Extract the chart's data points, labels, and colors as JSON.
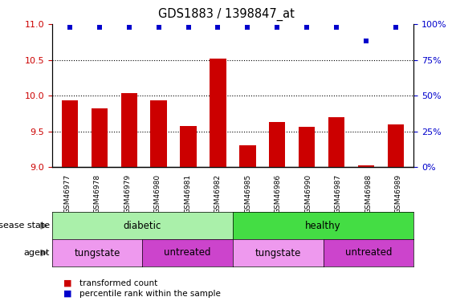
{
  "title": "GDS1883 / 1398847_at",
  "samples": [
    "GSM46977",
    "GSM46978",
    "GSM46979",
    "GSM46980",
    "GSM46981",
    "GSM46982",
    "GSM46985",
    "GSM46986",
    "GSM46990",
    "GSM46987",
    "GSM46988",
    "GSM46989"
  ],
  "bar_values": [
    9.93,
    9.82,
    10.03,
    9.93,
    9.57,
    10.52,
    9.31,
    9.63,
    9.56,
    9.7,
    9.02,
    9.6
  ],
  "percentile_values": [
    98,
    98,
    98,
    98,
    98,
    98,
    98,
    98,
    98,
    98,
    88,
    98
  ],
  "ylim_left": [
    9.0,
    11.0
  ],
  "ylim_right": [
    0,
    100
  ],
  "yticks_left": [
    9.0,
    9.5,
    10.0,
    10.5,
    11.0
  ],
  "yticks_right": [
    0,
    25,
    50,
    75,
    100
  ],
  "ytick_labels_right": [
    "0%",
    "25%",
    "50%",
    "75%",
    "100%"
  ],
  "bar_color": "#cc0000",
  "percentile_color": "#0000cc",
  "bar_base": 9.0,
  "disease_state_groups": [
    {
      "label": "diabetic",
      "start": 0,
      "end": 6,
      "color": "#aaf0aa"
    },
    {
      "label": "healthy",
      "start": 6,
      "end": 12,
      "color": "#44dd44"
    }
  ],
  "agent_groups": [
    {
      "label": "tungstate",
      "start": 0,
      "end": 3,
      "color": "#ee99ee"
    },
    {
      "label": "untreated",
      "start": 3,
      "end": 6,
      "color": "#cc44cc"
    },
    {
      "label": "tungstate",
      "start": 6,
      "end": 9,
      "color": "#ee99ee"
    },
    {
      "label": "untreated",
      "start": 9,
      "end": 12,
      "color": "#cc44cc"
    }
  ],
  "disease_label": "disease state",
  "agent_label": "agent",
  "legend_bar_label": "transformed count",
  "legend_pct_label": "percentile rank within the sample",
  "bg_color": "#ffffff",
  "tick_color_left": "#cc0000",
  "tick_color_right": "#0000cc",
  "xticklabel_bg": "#cccccc",
  "ytick_label_left_fontsize": 8,
  "ytick_label_right_fontsize": 8,
  "bar_width": 0.55
}
